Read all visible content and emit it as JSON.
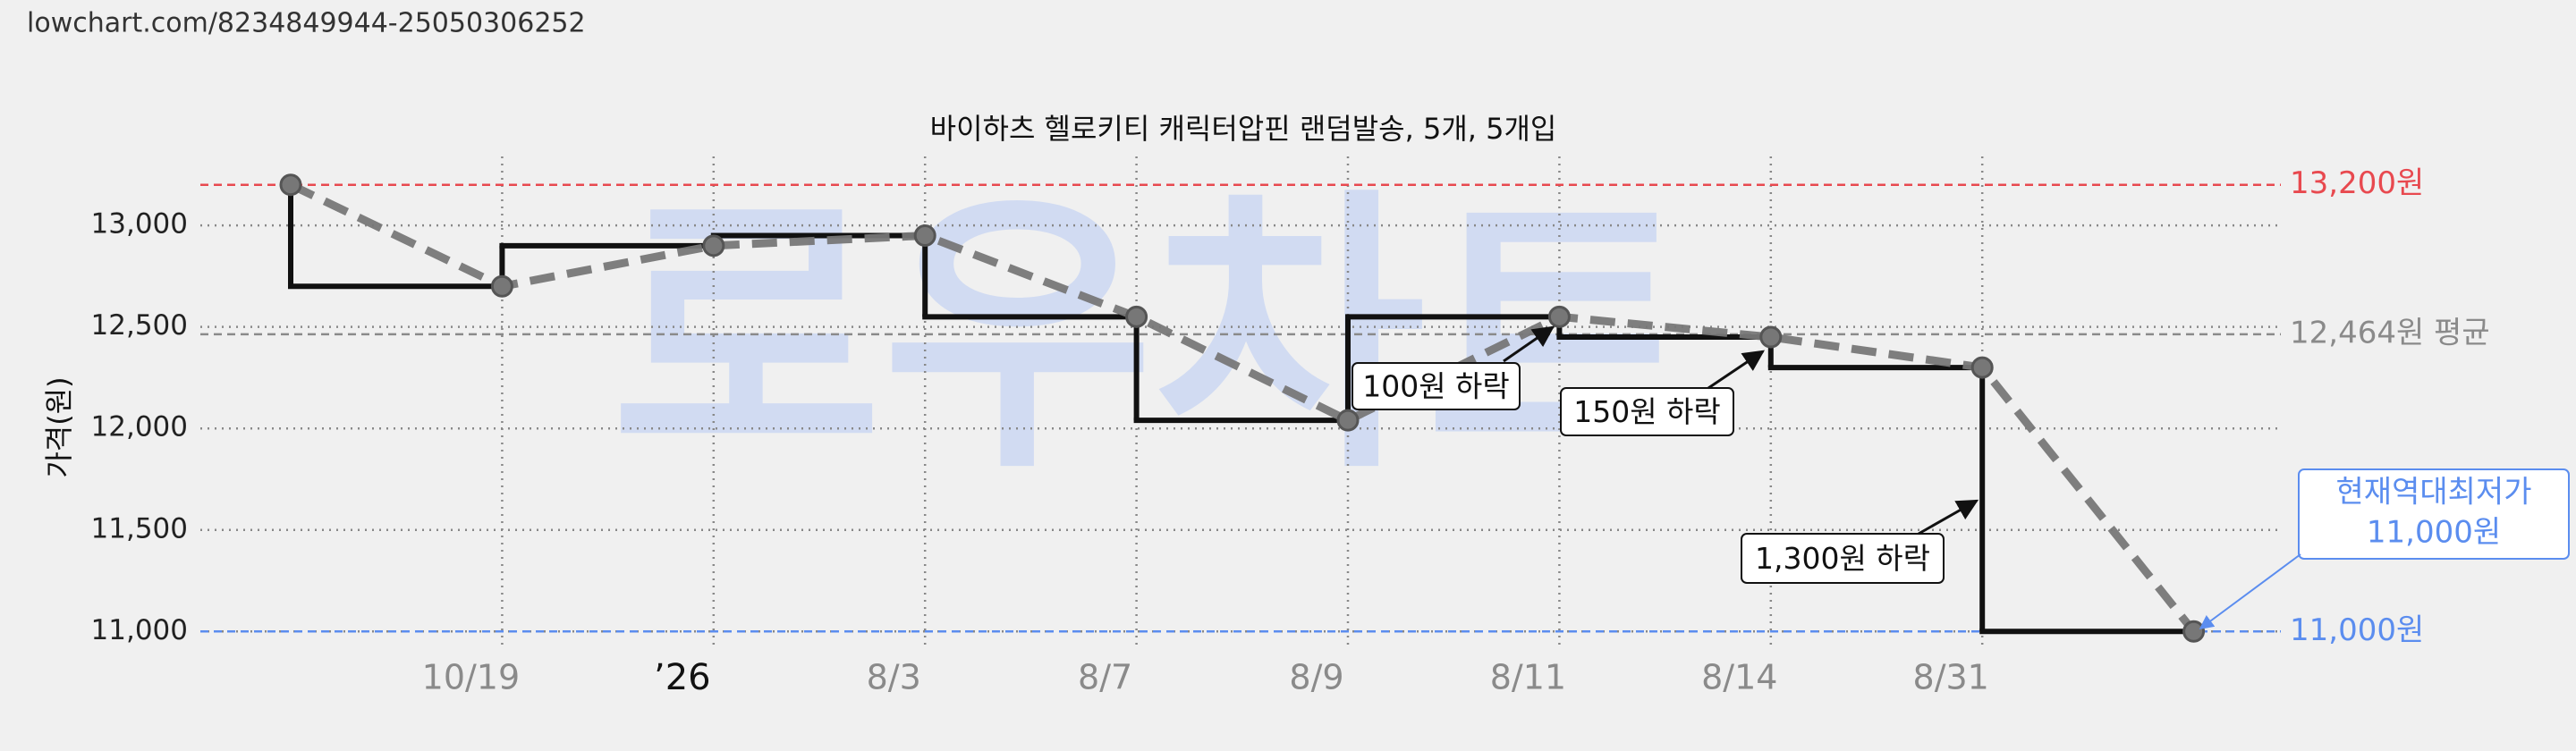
{
  "url": "lowchart.com/8234849944-25050306252",
  "watermark": "로우차트",
  "chart_data": {
    "type": "line",
    "title": "바이하츠 헬로키티 캐릭터압핀 랜덤발송, 5개, 5개입",
    "y_label": "가격(원)",
    "categories": [
      null,
      "10/19",
      "’26",
      "8/3",
      "8/7",
      "8/9",
      "8/11",
      "8/14",
      "8/31",
      null
    ],
    "values": [
      13200,
      12700,
      12900,
      12950,
      12550,
      12040,
      12550,
      12450,
      12300,
      11000
    ],
    "color": "#777777",
    "step_color": "#111111",
    "ylim": [
      10900,
      13300
    ],
    "yticks": [
      {
        "value": 11000,
        "label": "11,000"
      },
      {
        "value": 11500,
        "label": "11,500"
      },
      {
        "value": 12000,
        "label": "12,000"
      },
      {
        "value": 12500,
        "label": "12,500"
      },
      {
        "value": 13000,
        "label": "13,000"
      }
    ],
    "grid": true,
    "reference_lines": [
      {
        "value": 13200,
        "label": "13,200원",
        "color": "#e8494f"
      },
      {
        "value": 12464,
        "label": "12,464원 평균",
        "color": "#8a8a8a"
      },
      {
        "value": 11000,
        "label": "11,000원",
        "color": "#5b8def"
      }
    ],
    "annotations": [
      {
        "text": "100원 하락"
      },
      {
        "text": "150원 하락"
      },
      {
        "text": "1,300원 하락"
      },
      {
        "lines": [
          "현재역대최저가",
          "11,000원"
        ],
        "color": "#5b8def"
      }
    ]
  }
}
